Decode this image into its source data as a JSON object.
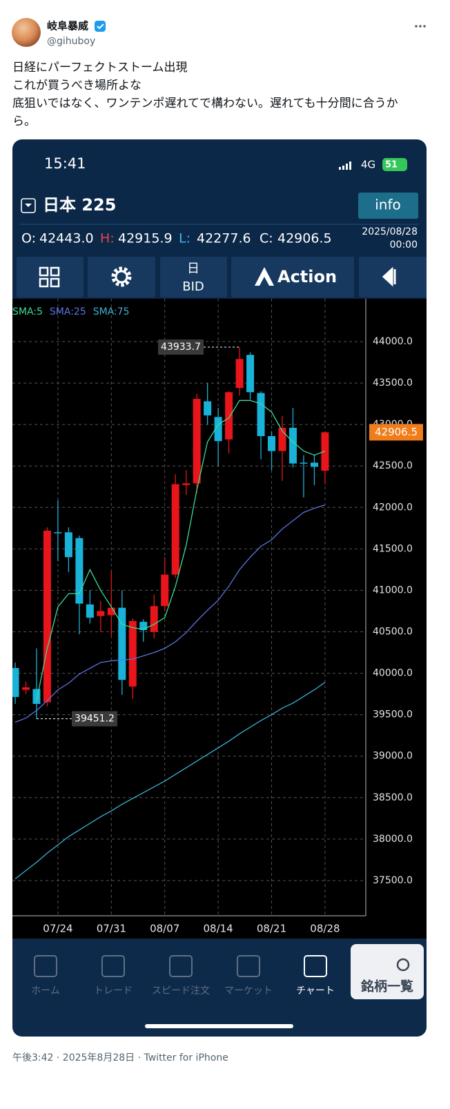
{
  "tweet": {
    "name": "岐阜暴威",
    "handle": "@gihuboy",
    "text": [
      "日経にパーフェクトストーム出現",
      "これが買うべき場所よな",
      "底狙いではなく、ワンテンポ遅れてで構わない。遅れても十分間に合うか",
      "ら。"
    ],
    "footer": "午後3:42 · 2025年8月28日 · Twitter for iPhone"
  },
  "app": {
    "status_time": "15:41",
    "network": "4G",
    "battery": "51",
    "symbol": "日本 225",
    "info_button": "info",
    "ohlc": [
      {
        "label": "O:",
        "value": "42443.0"
      },
      {
        "label": "H:",
        "value": "42915.9"
      },
      {
        "label": "L:",
        "value": "42277.6"
      },
      {
        "label": "C:",
        "value": "42906.5"
      }
    ],
    "date": "2025/08/28",
    "time": "00:00",
    "toolbar": {
      "period": "日",
      "price": "BID",
      "action": "Action"
    },
    "nav": [
      "ホーム",
      "トレード",
      "スピード注文",
      "マーケット",
      "チャート",
      "銘柄一覧"
    ]
  },
  "chart": {
    "type": "candlestick",
    "categories": [
      null,
      null,
      null,
      null,
      "07/24",
      null,
      null,
      null,
      null,
      "07/31",
      null,
      null,
      null,
      null,
      "08/07",
      null,
      null,
      null,
      null,
      "08/14",
      null,
      null,
      null,
      null,
      "08/21",
      null,
      null,
      null,
      null,
      "08/28"
    ],
    "candles": {
      "open": [
        40063,
        39800,
        39810,
        39650,
        41700,
        41700,
        41630,
        40830,
        40690,
        40700,
        40790,
        39840,
        40620,
        40500,
        40810,
        41190,
        42270,
        42290,
        43280,
        43090,
        42820,
        43440,
        43840,
        43380,
        42860,
        42680,
        42960,
        42540,
        42540,
        42443
      ],
      "high": [
        40130,
        39900,
        40300,
        41760,
        42086,
        41760,
        41660,
        41000,
        40870,
        41230,
        41000,
        40660,
        40650,
        40950,
        41400,
        42400,
        42450,
        43370,
        43500,
        43200,
        43400,
        43933.7,
        43870,
        43400,
        42920,
        43100,
        43200,
        42630,
        42640,
        42915.9
      ],
      "low": [
        39630,
        39750,
        39451.2,
        39600,
        41350,
        41220,
        40470,
        40600,
        40500,
        40450,
        39740,
        39690,
        40380,
        40420,
        40750,
        41150,
        42150,
        42170,
        43000,
        42500,
        42650,
        43350,
        43300,
        42580,
        42450,
        42320,
        42480,
        42120,
        42270,
        42277.6
      ],
      "close": [
        39714,
        39830,
        39630,
        41720,
        41690,
        41400,
        40840,
        40670,
        40750,
        40790,
        39920,
        40630,
        40520,
        40810,
        41190,
        42280,
        42290,
        43310,
        43110,
        42800,
        43390,
        43790,
        43390,
        42860,
        42680,
        42960,
        42530,
        42530,
        42490,
        42906.5
      ],
      "up_color": "#e8151b",
      "down_color": "#19b3da"
    },
    "series": [
      {
        "name": "SMA:5",
        "color": "#3ddc97",
        "values": [
          null,
          null,
          39670,
          40300,
          40800,
          40960,
          40960,
          41250,
          41000,
          40800,
          40590,
          40550,
          40530,
          40590,
          40670,
          41050,
          41540,
          42210,
          42790,
          43000,
          43080,
          43290,
          43290,
          43250,
          43150,
          42920,
          42790,
          42680,
          42630,
          42680
        ]
      },
      {
        "name": "SMA:25",
        "color": "#5b74e0",
        "values": [
          39410,
          39460,
          39550,
          39670,
          39800,
          39880,
          39990,
          40060,
          40130,
          40150,
          40160,
          40170,
          40210,
          40250,
          40300,
          40380,
          40490,
          40630,
          40760,
          40880,
          41050,
          41250,
          41400,
          41530,
          41610,
          41740,
          41840,
          41940,
          41990,
          42030
        ]
      },
      {
        "name": "SMA:75",
        "color": "#3fb0d6",
        "values": [
          37520,
          37620,
          37720,
          37830,
          37930,
          38030,
          38110,
          38190,
          38270,
          38340,
          38420,
          38490,
          38560,
          38630,
          38700,
          38780,
          38860,
          38940,
          39020,
          39100,
          39180,
          39270,
          39350,
          39430,
          39500,
          39580,
          39640,
          39720,
          39800,
          39890
        ]
      }
    ],
    "ylim": [
      37075,
      44516
    ],
    "yticks": [
      {
        "value": 44000,
        "label": "44000.0"
      },
      {
        "value": 43500,
        "label": "43500.0"
      },
      {
        "value": 43000,
        "label": "43000.0"
      },
      {
        "value": 42500,
        "label": "42500.0"
      },
      {
        "value": 42000,
        "label": "42000.0"
      },
      {
        "value": 41500,
        "label": "41500.0"
      },
      {
        "value": 41000,
        "label": "41000.0"
      },
      {
        "value": 40500,
        "label": "40500.0"
      },
      {
        "value": 40000,
        "label": "40000.0"
      },
      {
        "value": 39500,
        "label": "39500.0"
      },
      {
        "value": 39000,
        "label": "39000.0"
      },
      {
        "value": 38500,
        "label": "38500.0"
      },
      {
        "value": 38000,
        "label": "38000.0"
      },
      {
        "value": 37500,
        "label": "37500.0"
      }
    ],
    "grid": true
  }
}
